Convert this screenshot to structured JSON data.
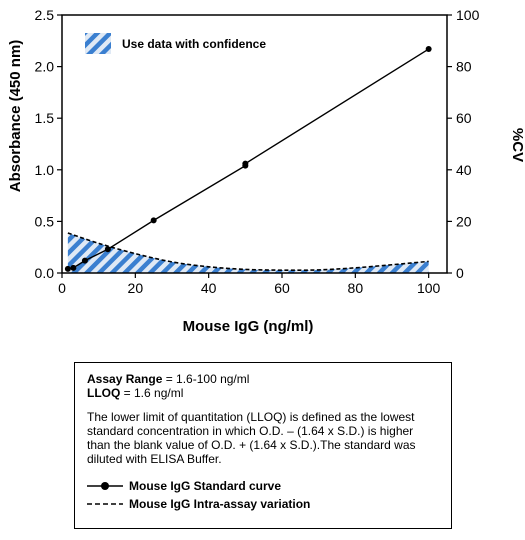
{
  "chart_data": {
    "type": "line",
    "xlabel": "Mouse IgG (ng/ml)",
    "ylabel": "Absorbance (450 nm)",
    "y2label": "%CV",
    "xlim": [
      0,
      105
    ],
    "ylim": [
      0,
      2.5
    ],
    "y2lim": [
      0,
      100
    ],
    "xticks": [
      0,
      20,
      40,
      60,
      80,
      100
    ],
    "yticks": [
      0.0,
      0.5,
      1.0,
      1.5,
      2.0,
      2.5
    ],
    "yticks_labels": [
      "0.0",
      "0.5",
      "1.0",
      "1.5",
      "2.0",
      "2.5"
    ],
    "y2ticks": [
      0,
      20,
      40,
      60,
      80,
      100
    ],
    "grid": false,
    "legend_inner": "Use data with confidence",
    "series": [
      {
        "name": "Mouse IgG Standard curve",
        "axis": "left",
        "style": "solid-with-markers",
        "x": [
          1.6,
          3.1,
          6.25,
          12.5,
          25,
          50,
          50,
          100
        ],
        "y": [
          0.04,
          0.05,
          0.12,
          0.23,
          0.51,
          1.04,
          1.06,
          2.17
        ]
      },
      {
        "name": "Mouse IgG Intra-assay variation",
        "axis": "right",
        "style": "dashed-with-hatched-fill",
        "x": [
          1.6,
          10,
          20,
          30,
          40,
          50,
          60,
          70,
          80,
          90,
          100
        ],
        "y": [
          15.5,
          11.5,
          7.5,
          4.3,
          2.4,
          1.4,
          1.1,
          1.2,
          2.0,
          3.2,
          4.5
        ]
      }
    ]
  },
  "info": {
    "assay_range_label": "Assay Range",
    "assay_range_value": " = 1.6-100 ng/ml",
    "lloq_label": "LLOQ",
    "lloq_value": " = 1.6 ng/ml",
    "description": "The lower limit of quantitation (LLOQ) is defined as the lowest standard concentration in which O.D. – (1.64 x S.D.) is higher than the blank value of O.D. + (1.64 x S.D.).The standard was diluted with ELISA Buffer.",
    "legend": [
      "Mouse IgG Standard curve",
      "Mouse IgG Intra-assay variation"
    ]
  },
  "colors": {
    "hatch_blue": "#3a7fd0",
    "hatch_light": "#dfe9f5",
    "line": "#000000"
  }
}
